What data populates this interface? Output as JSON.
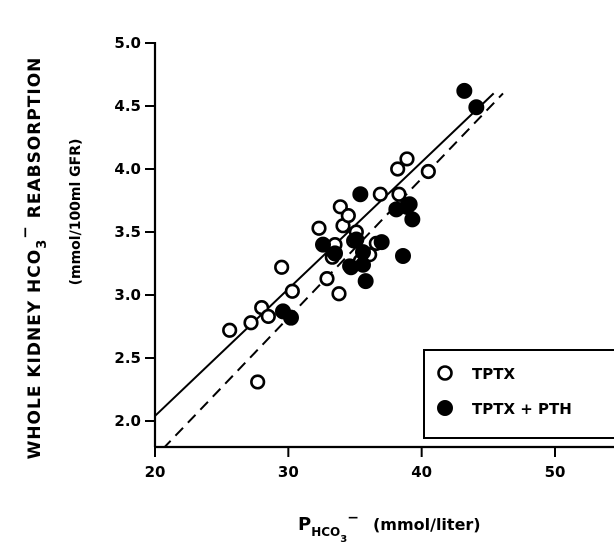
{
  "chart_data": {
    "type": "scatter",
    "xlabel": "P",
    "xlabel_sub": "HCO",
    "xlabel_subsub": "3",
    "xlabel_sup": "−",
    "xlabel_units": "(mmol/liter)",
    "ylabel_line1_pre": "WHOLE KIDNEY HCO",
    "ylabel_line1_sub": "3",
    "ylabel_line1_sup": "−",
    "ylabel_line1_post": "REABSORPTION",
    "ylabel_line2": "(mmol/100ml GFR)",
    "xlim": [
      20,
      55
    ],
    "ylim": [
      1.8,
      5.0
    ],
    "xticks": [
      20,
      30,
      40,
      50
    ],
    "xtick_labels": [
      "20",
      "30",
      "40",
      "50"
    ],
    "yticks": [
      2.0,
      2.5,
      3.0,
      3.5,
      4.0,
      4.5,
      5.0
    ],
    "ytick_labels": [
      "2.0",
      "2.5",
      "3.0",
      "3.5",
      "4.0",
      "4.5",
      "5.0"
    ],
    "legend_position": "lower-right",
    "series": [
      {
        "name": "TPTX",
        "marker": "open-circle",
        "points": [
          [
            25.6,
            2.72
          ],
          [
            27.2,
            2.78
          ],
          [
            27.7,
            2.31
          ],
          [
            28.0,
            2.9
          ],
          [
            28.5,
            2.83
          ],
          [
            29.5,
            3.22
          ],
          [
            30.3,
            3.03
          ],
          [
            32.3,
            3.53
          ],
          [
            32.9,
            3.13
          ],
          [
            33.3,
            3.3
          ],
          [
            33.5,
            3.4
          ],
          [
            33.8,
            3.01
          ],
          [
            33.9,
            3.7
          ],
          [
            34.1,
            3.55
          ],
          [
            34.5,
            3.63
          ],
          [
            34.6,
            3.23
          ],
          [
            34.9,
            3.43
          ],
          [
            35.1,
            3.5
          ],
          [
            35.4,
            3.27
          ],
          [
            36.1,
            3.32
          ],
          [
            36.6,
            3.41
          ],
          [
            36.9,
            3.8
          ],
          [
            38.2,
            4.0
          ],
          [
            38.3,
            3.8
          ],
          [
            38.9,
            4.08
          ],
          [
            40.5,
            3.98
          ]
        ]
      },
      {
        "name": "TPTX + PTH",
        "marker": "filled-circle",
        "points": [
          [
            29.6,
            2.87
          ],
          [
            30.2,
            2.82
          ],
          [
            32.6,
            3.4
          ],
          [
            33.5,
            3.33
          ],
          [
            34.7,
            3.22
          ],
          [
            35.1,
            3.44
          ],
          [
            35.4,
            3.8
          ],
          [
            35.6,
            3.24
          ],
          [
            35.6,
            3.34
          ],
          [
            35.8,
            3.11
          ],
          [
            37.0,
            3.42
          ],
          [
            38.1,
            3.68
          ],
          [
            38.6,
            3.31
          ],
          [
            38.9,
            3.7
          ],
          [
            39.1,
            3.72
          ],
          [
            39.3,
            3.6
          ],
          [
            43.2,
            4.62
          ],
          [
            44.1,
            4.49
          ]
        ]
      }
    ],
    "regression_lines": [
      {
        "series": "TPTX",
        "style": "solid",
        "x": [
          20,
          45.4
        ],
        "y": [
          2.04,
          4.6
        ]
      },
      {
        "series": "TPTX + PTH",
        "style": "dashed",
        "x": [
          20.6,
          46.1
        ],
        "y": [
          1.78,
          4.6
        ]
      }
    ]
  }
}
